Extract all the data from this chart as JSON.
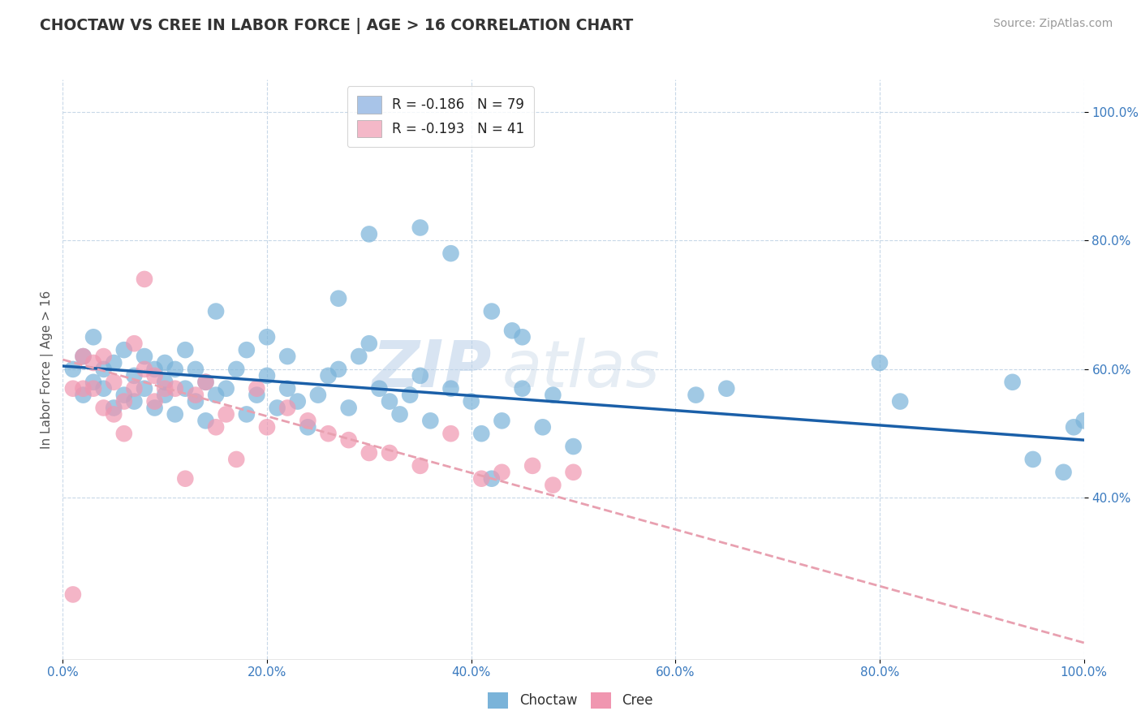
{
  "title": "CHOCTAW VS CREE IN LABOR FORCE | AGE > 16 CORRELATION CHART",
  "ylabel": "In Labor Force | Age > 16",
  "source_text": "Source: ZipAtlas.com",
  "watermark_zip": "ZIP",
  "watermark_atlas": "atlas",
  "legend_entries": [
    {
      "label": "R = -0.186   N = 79",
      "color": "#a8c4e8"
    },
    {
      "label": "R = -0.193   N = 41",
      "color": "#f4b8c8"
    }
  ],
  "bottom_legend": [
    "Choctaw",
    "Cree"
  ],
  "choctaw_color": "#7ab3d9",
  "cree_color": "#f096b0",
  "choctaw_line_color": "#1a5fa8",
  "cree_line_color": "#e8a0b0",
  "background_color": "#ffffff",
  "grid_color": "#c8d8e8",
  "xlim": [
    0.0,
    1.0
  ],
  "ylim": [
    0.15,
    1.05
  ],
  "xticks": [
    0.0,
    0.2,
    0.4,
    0.6,
    0.8,
    1.0
  ],
  "yticks": [
    0.4,
    0.6,
    0.8,
    1.0
  ],
  "xticklabels": [
    "0.0%",
    "20.0%",
    "40.0%",
    "60.0%",
    "80.0%",
    "100.0%"
  ],
  "yticklabels": [
    "40.0%",
    "60.0%",
    "80.0%",
    "100.0%"
  ],
  "choctaw_x": [
    0.01,
    0.02,
    0.02,
    0.03,
    0.03,
    0.04,
    0.04,
    0.05,
    0.05,
    0.06,
    0.06,
    0.07,
    0.07,
    0.08,
    0.08,
    0.09,
    0.09,
    0.1,
    0.1,
    0.1,
    0.11,
    0.11,
    0.12,
    0.12,
    0.13,
    0.13,
    0.14,
    0.14,
    0.15,
    0.15,
    0.16,
    0.17,
    0.18,
    0.18,
    0.19,
    0.2,
    0.2,
    0.21,
    0.22,
    0.22,
    0.23,
    0.24,
    0.25,
    0.26,
    0.27,
    0.28,
    0.29,
    0.3,
    0.31,
    0.32,
    0.33,
    0.34,
    0.35,
    0.36,
    0.38,
    0.4,
    0.41,
    0.42,
    0.43,
    0.44,
    0.45,
    0.47,
    0.48,
    0.5,
    0.27,
    0.3,
    0.35,
    0.38,
    0.42,
    0.45,
    0.62,
    0.65,
    0.8,
    0.82,
    0.93,
    0.95,
    0.98,
    0.99,
    1.0
  ],
  "choctaw_y": [
    0.6,
    0.56,
    0.62,
    0.58,
    0.65,
    0.57,
    0.6,
    0.54,
    0.61,
    0.56,
    0.63,
    0.55,
    0.59,
    0.57,
    0.62,
    0.54,
    0.6,
    0.56,
    0.61,
    0.58,
    0.53,
    0.6,
    0.57,
    0.63,
    0.55,
    0.6,
    0.52,
    0.58,
    0.56,
    0.69,
    0.57,
    0.6,
    0.53,
    0.63,
    0.56,
    0.59,
    0.65,
    0.54,
    0.57,
    0.62,
    0.55,
    0.51,
    0.56,
    0.59,
    0.6,
    0.54,
    0.62,
    0.64,
    0.57,
    0.55,
    0.53,
    0.56,
    0.59,
    0.52,
    0.57,
    0.55,
    0.5,
    0.43,
    0.52,
    0.66,
    0.57,
    0.51,
    0.56,
    0.48,
    0.71,
    0.81,
    0.82,
    0.78,
    0.69,
    0.65,
    0.56,
    0.57,
    0.61,
    0.55,
    0.58,
    0.46,
    0.44,
    0.51,
    0.52
  ],
  "cree_x": [
    0.01,
    0.01,
    0.02,
    0.02,
    0.03,
    0.03,
    0.04,
    0.04,
    0.05,
    0.05,
    0.06,
    0.06,
    0.07,
    0.07,
    0.08,
    0.08,
    0.09,
    0.09,
    0.1,
    0.11,
    0.12,
    0.13,
    0.14,
    0.15,
    0.16,
    0.17,
    0.19,
    0.2,
    0.22,
    0.24,
    0.26,
    0.28,
    0.3,
    0.32,
    0.35,
    0.38,
    0.41,
    0.43,
    0.46,
    0.48,
    0.5
  ],
  "cree_y": [
    0.25,
    0.57,
    0.57,
    0.62,
    0.57,
    0.61,
    0.54,
    0.62,
    0.53,
    0.58,
    0.5,
    0.55,
    0.57,
    0.64,
    0.6,
    0.74,
    0.59,
    0.55,
    0.57,
    0.57,
    0.43,
    0.56,
    0.58,
    0.51,
    0.53,
    0.46,
    0.57,
    0.51,
    0.54,
    0.52,
    0.5,
    0.49,
    0.47,
    0.47,
    0.45,
    0.5,
    0.43,
    0.44,
    0.45,
    0.42,
    0.44
  ],
  "choctaw_line_x": [
    0.0,
    1.0
  ],
  "choctaw_line_y": [
    0.605,
    0.49
  ],
  "cree_line_x": [
    0.0,
    1.0
  ],
  "cree_line_y": [
    0.615,
    0.175
  ]
}
